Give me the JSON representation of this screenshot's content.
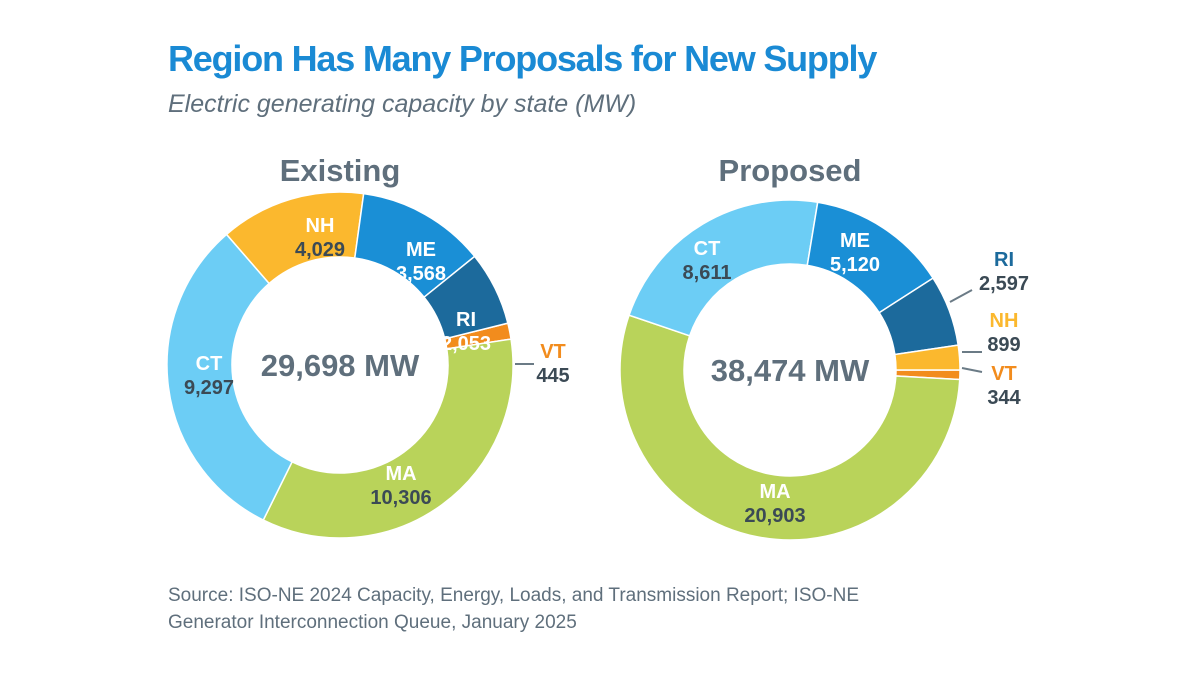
{
  "header": {
    "title": "Region Has Many Proposals for New Supply",
    "subtitle": "Electric generating capacity by state (MW)"
  },
  "footer": {
    "source_line1": "Source: ISO-NE 2024 Capacity, Energy, Loads, and Transmission Report; ISO-NE",
    "source_line2": "Generator Interconnection Queue, January 2025"
  },
  "colors": {
    "MA": "#b9d35a",
    "CT": "#6ccdf5",
    "NH": "#fbb82e",
    "ME": "#1a8fd6",
    "RI": "#1c6a9c",
    "VT": "#f28c1d",
    "title": "#1a8ad4",
    "heading": "#5f6f7c",
    "value_text": "#3b4a55"
  },
  "chart_data": [
    {
      "type": "pie",
      "style": "donut",
      "title": "Existing",
      "center_label": "29,698 MW",
      "slices": [
        {
          "label": "MA",
          "value": 10306,
          "value_text": "10,306"
        },
        {
          "label": "CT",
          "value": 9297,
          "value_text": "9,297"
        },
        {
          "label": "NH",
          "value": 4029,
          "value_text": "4,029"
        },
        {
          "label": "ME",
          "value": 3568,
          "value_text": "3,568"
        },
        {
          "label": "RI",
          "value": 2053,
          "value_text": "2,053"
        },
        {
          "label": "VT",
          "value": 445,
          "value_text": "445"
        }
      ]
    },
    {
      "type": "pie",
      "style": "donut",
      "title": "Proposed",
      "center_label": "38,474 MW",
      "slices": [
        {
          "label": "MA",
          "value": 20903,
          "value_text": "20,903"
        },
        {
          "label": "CT",
          "value": 8611,
          "value_text": "8,611"
        },
        {
          "label": "ME",
          "value": 5120,
          "value_text": "5,120"
        },
        {
          "label": "RI",
          "value": 2597,
          "value_text": "2,597"
        },
        {
          "label": "NH",
          "value": 899,
          "value_text": "899"
        },
        {
          "label": "VT",
          "value": 344,
          "value_text": "344"
        }
      ]
    }
  ]
}
